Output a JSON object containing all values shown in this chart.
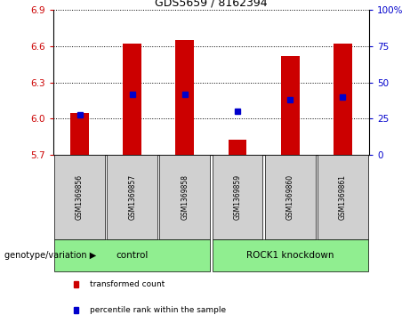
{
  "title": "GDS5659 / 8162394",
  "samples": [
    "GSM1369856",
    "GSM1369857",
    "GSM1369858",
    "GSM1369859",
    "GSM1369860",
    "GSM1369861"
  ],
  "transformed_counts": [
    6.05,
    6.62,
    6.65,
    5.83,
    6.52,
    6.62
  ],
  "percentile_ranks": [
    28,
    42,
    42,
    30,
    38,
    40
  ],
  "ylim_left": [
    5.7,
    6.9
  ],
  "ylim_right": [
    0,
    100
  ],
  "yticks_left": [
    5.7,
    6.0,
    6.3,
    6.6,
    6.9
  ],
  "yticks_right": [
    0,
    25,
    50,
    75,
    100
  ],
  "ytick_labels_right": [
    "0",
    "25",
    "50",
    "75",
    "100%"
  ],
  "bar_color": "#cc0000",
  "dot_color": "#0000cc",
  "sample_box_color": "#d0d0d0",
  "group_box_color": "#90ee90",
  "baseline": 5.7,
  "groups": [
    {
      "label": "control",
      "start": 0,
      "end": 2
    },
    {
      "label": "ROCK1 knockdown",
      "start": 3,
      "end": 5
    }
  ],
  "legend_items": [
    {
      "label": "transformed count",
      "color": "#cc0000"
    },
    {
      "label": "percentile rank within the sample",
      "color": "#0000cc"
    }
  ],
  "xlabel_label": "genotype/variation",
  "fig_width": 4.61,
  "fig_height": 3.63,
  "dpi": 100
}
